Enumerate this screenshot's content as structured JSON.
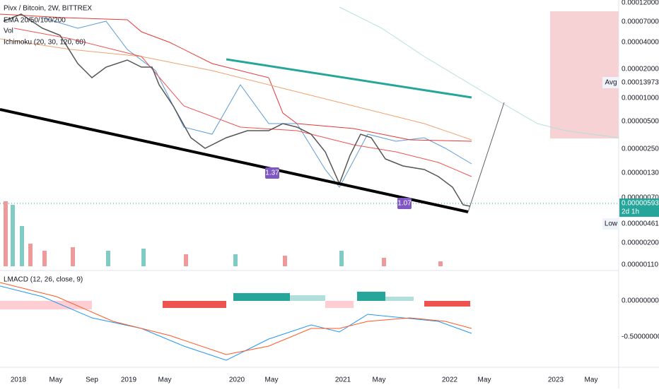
{
  "legend": {
    "symbol": "Pivx / Bitcoin, 2W, BITTREX",
    "ema": "EMA 20/50/100/200",
    "vol": "Vol",
    "ichimoku": "Ichimoku (20, 30, 120, 60)",
    "macd": "LMACD (12, 26, close, 9)"
  },
  "price_axis": [
    "0.00012000",
    "0.00007000",
    "0.00004000",
    "0.00002000",
    "0.00001000",
    "0.00000500",
    "0.00000250",
    "0.00000130",
    "0.00000070",
    "0.00000200",
    "0.00000110"
  ],
  "macd_axis": [
    "0.00000000",
    "-0.50000000"
  ],
  "badges": {
    "avg_label": "Avg",
    "avg_value": "0.00013973",
    "last_value": "0.00000593",
    "countdown": "2d 1h",
    "low_label": "Low",
    "low_value": "0.00000461"
  },
  "fib_labels": [
    "1.37",
    "1.07"
  ],
  "time_axis": [
    "2018",
    "May",
    "Sep",
    "2019",
    "May",
    "2020",
    "May",
    "2021",
    "May",
    "2022",
    "May",
    "2023",
    "May"
  ]
}
